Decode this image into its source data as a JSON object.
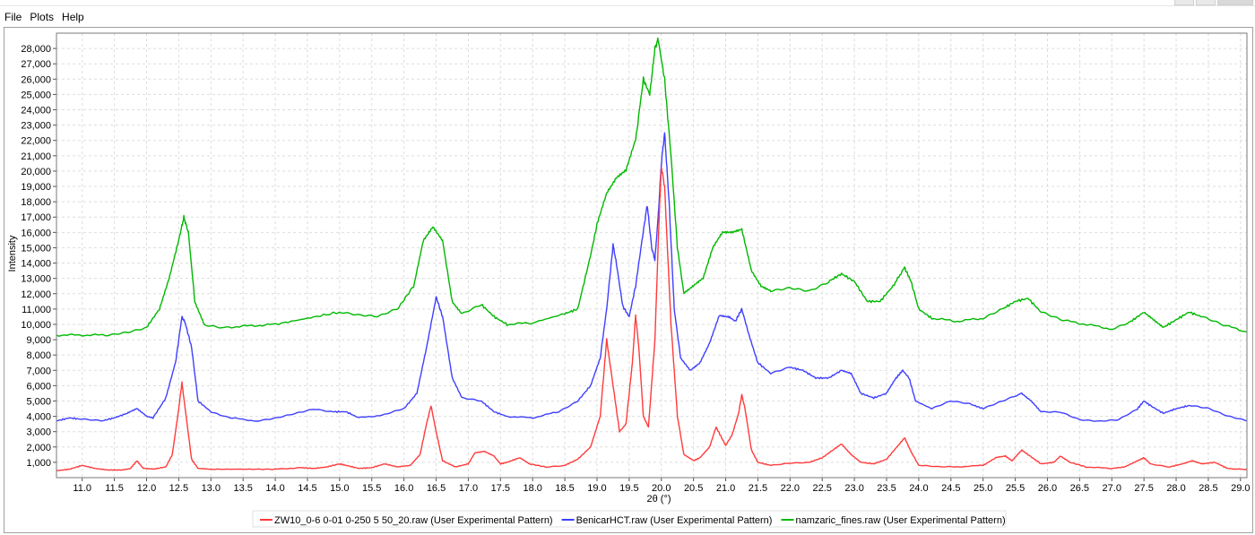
{
  "menu": [
    "File",
    "Plots",
    "Help"
  ],
  "chart_data": {
    "type": "line",
    "xlabel": "2θ (°)",
    "ylabel": "Intensity",
    "xlim": [
      10.6,
      29.1
    ],
    "ylim": [
      0,
      29000
    ],
    "grid": true,
    "legend_position": "bottom",
    "x_ticks": [
      "11.0",
      "11.5",
      "12.0",
      "12.5",
      "13.0",
      "13.5",
      "14.0",
      "14.5",
      "15.0",
      "15.5",
      "16.0",
      "16.5",
      "17.0",
      "17.5",
      "18.0",
      "18.5",
      "19.0",
      "19.5",
      "20.0",
      "20.5",
      "21.0",
      "21.5",
      "22.0",
      "22.5",
      "23.0",
      "23.5",
      "24.0",
      "24.5",
      "25.0",
      "25.5",
      "26.0",
      "26.5",
      "27.0",
      "27.5",
      "28.0",
      "28.5",
      "29.0"
    ],
    "y_ticks": [
      "1,000",
      "2,000",
      "3,000",
      "4,000",
      "5,000",
      "6,000",
      "7,000",
      "8,000",
      "9,000",
      "10,000",
      "11,000",
      "12,000",
      "13,000",
      "14,000",
      "15,000",
      "16,000",
      "17,000",
      "18,000",
      "19,000",
      "20,000",
      "21,000",
      "22,000",
      "23,000",
      "24,000",
      "25,000",
      "26,000",
      "27,000",
      "28,000"
    ],
    "series": [
      {
        "name": "ZW10_0-6 0-01 0-250 5 50_20.raw (User Experimental Pattern)",
        "color": "#ff3b3b",
        "points": [
          [
            10.6,
            450
          ],
          [
            10.8,
            550
          ],
          [
            11.0,
            800
          ],
          [
            11.2,
            600
          ],
          [
            11.4,
            500
          ],
          [
            11.6,
            500
          ],
          [
            11.75,
            600
          ],
          [
            11.85,
            1100
          ],
          [
            11.95,
            600
          ],
          [
            12.1,
            550
          ],
          [
            12.3,
            700
          ],
          [
            12.4,
            1500
          ],
          [
            12.5,
            4500
          ],
          [
            12.55,
            6200
          ],
          [
            12.6,
            4500
          ],
          [
            12.7,
            1200
          ],
          [
            12.8,
            600
          ],
          [
            13.0,
            550
          ],
          [
            13.5,
            550
          ],
          [
            14.0,
            550
          ],
          [
            14.4,
            650
          ],
          [
            14.6,
            600
          ],
          [
            14.8,
            700
          ],
          [
            15.0,
            900
          ],
          [
            15.1,
            800
          ],
          [
            15.3,
            600
          ],
          [
            15.5,
            650
          ],
          [
            15.7,
            900
          ],
          [
            15.9,
            700
          ],
          [
            16.1,
            800
          ],
          [
            16.25,
            1500
          ],
          [
            16.35,
            3500
          ],
          [
            16.42,
            4700
          ],
          [
            16.5,
            3000
          ],
          [
            16.6,
            1100
          ],
          [
            16.8,
            700
          ],
          [
            17.0,
            900
          ],
          [
            17.1,
            1600
          ],
          [
            17.25,
            1700
          ],
          [
            17.4,
            1400
          ],
          [
            17.5,
            900
          ],
          [
            17.6,
            1000
          ],
          [
            17.8,
            1300
          ],
          [
            17.95,
            900
          ],
          [
            18.2,
            700
          ],
          [
            18.5,
            800
          ],
          [
            18.7,
            1200
          ],
          [
            18.9,
            2000
          ],
          [
            19.05,
            4000
          ],
          [
            19.15,
            9000
          ],
          [
            19.25,
            6000
          ],
          [
            19.35,
            3000
          ],
          [
            19.45,
            3500
          ],
          [
            19.55,
            7500
          ],
          [
            19.6,
            10600
          ],
          [
            19.65,
            8500
          ],
          [
            19.72,
            4000
          ],
          [
            19.8,
            3300
          ],
          [
            19.9,
            9000
          ],
          [
            19.97,
            17500
          ],
          [
            20.0,
            20300
          ],
          [
            20.05,
            19000
          ],
          [
            20.15,
            10000
          ],
          [
            20.25,
            4000
          ],
          [
            20.35,
            1500
          ],
          [
            20.5,
            1100
          ],
          [
            20.6,
            1300
          ],
          [
            20.75,
            2000
          ],
          [
            20.85,
            3300
          ],
          [
            20.95,
            2500
          ],
          [
            21.0,
            2100
          ],
          [
            21.1,
            2800
          ],
          [
            21.2,
            4200
          ],
          [
            21.25,
            5400
          ],
          [
            21.3,
            4500
          ],
          [
            21.4,
            1800
          ],
          [
            21.5,
            1000
          ],
          [
            21.7,
            800
          ],
          [
            22.0,
            950
          ],
          [
            22.3,
            1000
          ],
          [
            22.5,
            1300
          ],
          [
            22.7,
            1900
          ],
          [
            22.8,
            2200
          ],
          [
            22.95,
            1500
          ],
          [
            23.1,
            1000
          ],
          [
            23.3,
            900
          ],
          [
            23.5,
            1200
          ],
          [
            23.7,
            2200
          ],
          [
            23.78,
            2600
          ],
          [
            23.88,
            1700
          ],
          [
            24.0,
            800
          ],
          [
            24.3,
            700
          ],
          [
            24.6,
            700
          ],
          [
            25.0,
            800
          ],
          [
            25.2,
            1300
          ],
          [
            25.35,
            1400
          ],
          [
            25.45,
            1100
          ],
          [
            25.6,
            1800
          ],
          [
            25.7,
            1500
          ],
          [
            25.9,
            900
          ],
          [
            26.1,
            1000
          ],
          [
            26.2,
            1400
          ],
          [
            26.35,
            1000
          ],
          [
            26.6,
            700
          ],
          [
            27.0,
            600
          ],
          [
            27.2,
            700
          ],
          [
            27.4,
            1100
          ],
          [
            27.5,
            1300
          ],
          [
            27.6,
            900
          ],
          [
            27.9,
            700
          ],
          [
            28.1,
            900
          ],
          [
            28.25,
            1100
          ],
          [
            28.4,
            900
          ],
          [
            28.6,
            1000
          ],
          [
            28.8,
            600
          ],
          [
            29.1,
            550
          ]
        ]
      },
      {
        "name": "BenicarHCT.raw (User Experimental Pattern)",
        "color": "#3f3fff",
        "points": [
          [
            10.6,
            3700
          ],
          [
            10.8,
            3900
          ],
          [
            11.0,
            3800
          ],
          [
            11.3,
            3700
          ],
          [
            11.5,
            3900
          ],
          [
            11.7,
            4200
          ],
          [
            11.85,
            4500
          ],
          [
            12.0,
            4000
          ],
          [
            12.1,
            3900
          ],
          [
            12.3,
            5200
          ],
          [
            12.45,
            7500
          ],
          [
            12.55,
            10500
          ],
          [
            12.6,
            10100
          ],
          [
            12.7,
            8500
          ],
          [
            12.8,
            5000
          ],
          [
            13.0,
            4300
          ],
          [
            13.3,
            3900
          ],
          [
            13.7,
            3700
          ],
          [
            14.0,
            3900
          ],
          [
            14.3,
            4200
          ],
          [
            14.6,
            4500
          ],
          [
            14.9,
            4300
          ],
          [
            15.1,
            4300
          ],
          [
            15.3,
            3900
          ],
          [
            15.7,
            4100
          ],
          [
            16.0,
            4500
          ],
          [
            16.2,
            5500
          ],
          [
            16.35,
            8500
          ],
          [
            16.5,
            11800
          ],
          [
            16.6,
            10500
          ],
          [
            16.75,
            6500
          ],
          [
            16.9,
            5200
          ],
          [
            17.2,
            5000
          ],
          [
            17.4,
            4300
          ],
          [
            17.6,
            4000
          ],
          [
            18.0,
            3900
          ],
          [
            18.4,
            4300
          ],
          [
            18.7,
            5000
          ],
          [
            18.9,
            6000
          ],
          [
            19.05,
            7800
          ],
          [
            19.15,
            11000
          ],
          [
            19.25,
            15200
          ],
          [
            19.3,
            14000
          ],
          [
            19.4,
            11200
          ],
          [
            19.5,
            10500
          ],
          [
            19.6,
            12500
          ],
          [
            19.7,
            15500
          ],
          [
            19.78,
            17800
          ],
          [
            19.85,
            15000
          ],
          [
            19.9,
            14200
          ],
          [
            19.95,
            17000
          ],
          [
            20.0,
            20500
          ],
          [
            20.05,
            22500
          ],
          [
            20.12,
            18000
          ],
          [
            20.2,
            11000
          ],
          [
            20.3,
            7800
          ],
          [
            20.45,
            7000
          ],
          [
            20.6,
            7500
          ],
          [
            20.75,
            8800
          ],
          [
            20.9,
            10600
          ],
          [
            21.05,
            10500
          ],
          [
            21.15,
            10200
          ],
          [
            21.25,
            11000
          ],
          [
            21.35,
            9500
          ],
          [
            21.5,
            7500
          ],
          [
            21.7,
            6800
          ],
          [
            22.0,
            7200
          ],
          [
            22.2,
            7000
          ],
          [
            22.4,
            6500
          ],
          [
            22.6,
            6500
          ],
          [
            22.8,
            7000
          ],
          [
            22.95,
            6800
          ],
          [
            23.1,
            5500
          ],
          [
            23.3,
            5200
          ],
          [
            23.5,
            5500
          ],
          [
            23.65,
            6500
          ],
          [
            23.75,
            7000
          ],
          [
            23.85,
            6500
          ],
          [
            23.95,
            5000
          ],
          [
            24.2,
            4500
          ],
          [
            24.5,
            5000
          ],
          [
            24.8,
            4800
          ],
          [
            25.0,
            4500
          ],
          [
            25.3,
            5000
          ],
          [
            25.6,
            5500
          ],
          [
            25.75,
            5000
          ],
          [
            25.9,
            4300
          ],
          [
            26.2,
            4300
          ],
          [
            26.5,
            3800
          ],
          [
            26.8,
            3700
          ],
          [
            27.1,
            3800
          ],
          [
            27.4,
            4500
          ],
          [
            27.5,
            5000
          ],
          [
            27.6,
            4700
          ],
          [
            27.8,
            4200
          ],
          [
            28.0,
            4500
          ],
          [
            28.2,
            4700
          ],
          [
            28.5,
            4500
          ],
          [
            28.8,
            4000
          ],
          [
            29.1,
            3700
          ]
        ]
      },
      {
        "name": "namzaric_fines.raw (User Experimental Pattern)",
        "color": "#00b800",
        "points": [
          [
            10.6,
            9300
          ],
          [
            11.0,
            9300
          ],
          [
            11.4,
            9300
          ],
          [
            11.7,
            9500
          ],
          [
            12.0,
            9800
          ],
          [
            12.2,
            11000
          ],
          [
            12.35,
            13000
          ],
          [
            12.5,
            15500
          ],
          [
            12.58,
            17000
          ],
          [
            12.65,
            16000
          ],
          [
            12.75,
            11500
          ],
          [
            12.9,
            10000
          ],
          [
            13.2,
            9800
          ],
          [
            13.6,
            9900
          ],
          [
            14.0,
            10000
          ],
          [
            14.5,
            10400
          ],
          [
            15.0,
            10800
          ],
          [
            15.3,
            10600
          ],
          [
            15.6,
            10500
          ],
          [
            15.9,
            11000
          ],
          [
            16.15,
            12500
          ],
          [
            16.3,
            15500
          ],
          [
            16.45,
            16400
          ],
          [
            16.6,
            15500
          ],
          [
            16.75,
            11500
          ],
          [
            16.9,
            10700
          ],
          [
            17.2,
            11300
          ],
          [
            17.4,
            10500
          ],
          [
            17.6,
            10000
          ],
          [
            18.0,
            10100
          ],
          [
            18.5,
            10700
          ],
          [
            18.7,
            11000
          ],
          [
            18.9,
            14500
          ],
          [
            19.0,
            16500
          ],
          [
            19.15,
            18500
          ],
          [
            19.3,
            19500
          ],
          [
            19.45,
            20000
          ],
          [
            19.6,
            22000
          ],
          [
            19.72,
            26000
          ],
          [
            19.82,
            25000
          ],
          [
            19.9,
            28000
          ],
          [
            19.95,
            28600
          ],
          [
            20.05,
            26000
          ],
          [
            20.15,
            21000
          ],
          [
            20.25,
            15000
          ],
          [
            20.35,
            12000
          ],
          [
            20.5,
            12500
          ],
          [
            20.65,
            13000
          ],
          [
            20.8,
            15000
          ],
          [
            20.95,
            16000
          ],
          [
            21.1,
            16000
          ],
          [
            21.25,
            16200
          ],
          [
            21.4,
            13500
          ],
          [
            21.55,
            12500
          ],
          [
            21.7,
            12200
          ],
          [
            22.0,
            12400
          ],
          [
            22.3,
            12200
          ],
          [
            22.6,
            12800
          ],
          [
            22.8,
            13300
          ],
          [
            23.0,
            12800
          ],
          [
            23.2,
            11500
          ],
          [
            23.4,
            11500
          ],
          [
            23.6,
            12500
          ],
          [
            23.78,
            13700
          ],
          [
            23.88,
            12800
          ],
          [
            24.0,
            11000
          ],
          [
            24.2,
            10400
          ],
          [
            24.6,
            10200
          ],
          [
            25.0,
            10400
          ],
          [
            25.3,
            11000
          ],
          [
            25.5,
            11500
          ],
          [
            25.7,
            11700
          ],
          [
            25.9,
            10800
          ],
          [
            26.2,
            10300
          ],
          [
            26.6,
            10000
          ],
          [
            27.0,
            9700
          ],
          [
            27.3,
            10200
          ],
          [
            27.5,
            10800
          ],
          [
            27.65,
            10300
          ],
          [
            27.8,
            9800
          ],
          [
            28.0,
            10300
          ],
          [
            28.2,
            10800
          ],
          [
            28.4,
            10500
          ],
          [
            28.7,
            10000
          ],
          [
            29.1,
            9500
          ]
        ]
      }
    ]
  }
}
